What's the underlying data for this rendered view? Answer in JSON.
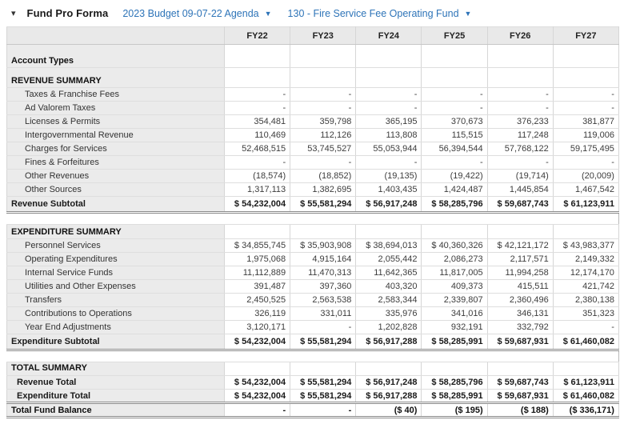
{
  "toolbar": {
    "collapse_icon": "▾",
    "title": "Fund Pro Forma",
    "budget_dropdown": {
      "label": "2023 Budget 09-07-22 Agenda",
      "caret": "▼"
    },
    "fund_dropdown": {
      "label": "130 - Fire Service Fee Operating Fund",
      "caret": "▼"
    },
    "link_color": "#2e74b8"
  },
  "table": {
    "columns": [
      "FY22",
      "FY23",
      "FY24",
      "FY25",
      "FY26",
      "FY27"
    ],
    "rows": [
      {
        "label": "Account Types",
        "style": "sec-tall",
        "values": [
          "",
          "",
          "",
          "",
          "",
          ""
        ]
      },
      {
        "label": "REVENUE SUMMARY",
        "style": "sec-mid",
        "values": [
          "",
          "",
          "",
          "",
          "",
          ""
        ]
      },
      {
        "label": "Taxes & Franchise Fees",
        "style": "data",
        "values": [
          "-",
          "-",
          "-",
          "-",
          "-",
          "-"
        ]
      },
      {
        "label": "Ad Valorem Taxes",
        "style": "data",
        "values": [
          "-",
          "-",
          "-",
          "-",
          "-",
          "-"
        ]
      },
      {
        "label": "Licenses & Permits",
        "style": "data",
        "values": [
          "354,481",
          "359,798",
          "365,195",
          "370,673",
          "376,233",
          "381,877"
        ]
      },
      {
        "label": "Intergovernmental Revenue",
        "style": "data",
        "values": [
          "110,469",
          "112,126",
          "113,808",
          "115,515",
          "117,248",
          "119,006"
        ]
      },
      {
        "label": "Charges for Services",
        "style": "data",
        "values": [
          "52,468,515",
          "53,745,527",
          "55,053,944",
          "56,394,544",
          "57,768,122",
          "59,175,495"
        ]
      },
      {
        "label": "Fines & Forfeitures",
        "style": "data",
        "values": [
          "-",
          "-",
          "-",
          "-",
          "-",
          "-"
        ]
      },
      {
        "label": "Other Revenues",
        "style": "data",
        "values": [
          "(18,574)",
          "(18,852)",
          "(19,135)",
          "(19,422)",
          "(19,714)",
          "(20,009)"
        ]
      },
      {
        "label": "Other Sources",
        "style": "data",
        "values": [
          "1,317,113",
          "1,382,695",
          "1,403,435",
          "1,424,487",
          "1,445,854",
          "1,467,542"
        ]
      },
      {
        "label": "Revenue Subtotal",
        "style": "subtotal",
        "values": [
          "$ 54,232,004",
          "$ 55,581,294",
          "$ 56,917,248",
          "$ 58,285,796",
          "$ 59,687,743",
          "$ 61,123,911"
        ]
      },
      {
        "label": "",
        "style": "spacer",
        "values": [
          "",
          "",
          "",
          "",
          "",
          ""
        ]
      },
      {
        "label": "EXPENDITURE SUMMARY",
        "style": "sec",
        "values": [
          "",
          "",
          "",
          "",
          "",
          ""
        ]
      },
      {
        "label": "Personnel Services",
        "style": "data",
        "values": [
          "$ 34,855,745",
          "$ 35,903,908",
          "$ 38,694,013",
          "$ 40,360,326",
          "$ 42,121,172",
          "$ 43,983,377"
        ]
      },
      {
        "label": "Operating Expenditures",
        "style": "data",
        "values": [
          "1,975,068",
          "4,915,164",
          "2,055,442",
          "2,086,273",
          "2,117,571",
          "2,149,332"
        ]
      },
      {
        "label": "Internal Service Funds",
        "style": "data",
        "values": [
          "11,112,889",
          "11,470,313",
          "11,642,365",
          "11,817,005",
          "11,994,258",
          "12,174,170"
        ]
      },
      {
        "label": "Utilities and Other Expenses",
        "style": "data",
        "values": [
          "391,487",
          "397,360",
          "403,320",
          "409,373",
          "415,511",
          "421,742"
        ]
      },
      {
        "label": "Transfers",
        "style": "data",
        "values": [
          "2,450,525",
          "2,563,538",
          "2,583,344",
          "2,339,807",
          "2,360,496",
          "2,380,138"
        ]
      },
      {
        "label": "Contributions to Operations",
        "style": "data",
        "values": [
          "326,119",
          "331,011",
          "335,976",
          "341,016",
          "346,131",
          "351,323"
        ]
      },
      {
        "label": "Year End Adjustments",
        "style": "data",
        "values": [
          "3,120,171",
          "-",
          "1,202,828",
          "932,191",
          "332,792",
          "-"
        ]
      },
      {
        "label": "Expenditure Subtotal",
        "style": "subtotal",
        "values": [
          "$ 54,232,004",
          "$ 55,581,294",
          "$ 56,917,288",
          "$ 58,285,991",
          "$ 59,687,931",
          "$ 61,460,082"
        ]
      },
      {
        "label": "",
        "style": "spacer",
        "values": [
          "",
          "",
          "",
          "",
          "",
          ""
        ]
      },
      {
        "label": "TOTAL SUMMARY",
        "style": "sec-sm",
        "values": [
          "",
          "",
          "",
          "",
          "",
          ""
        ]
      },
      {
        "label": "Revenue Total",
        "style": "total total-top",
        "values": [
          "$ 54,232,004",
          "$ 55,581,294",
          "$ 56,917,248",
          "$ 58,285,796",
          "$ 59,687,743",
          "$ 61,123,911"
        ]
      },
      {
        "label": "Expenditure Total",
        "style": "total total-end",
        "values": [
          "$ 54,232,004",
          "$ 55,581,294",
          "$ 56,917,288",
          "$ 58,285,991",
          "$ 59,687,931",
          "$ 61,460,082"
        ]
      },
      {
        "label": "Total Fund Balance",
        "style": "grand",
        "values": [
          "-",
          "-",
          "($ 40)",
          "($ 195)",
          "($ 188)",
          "($ 336,171)"
        ]
      }
    ]
  }
}
